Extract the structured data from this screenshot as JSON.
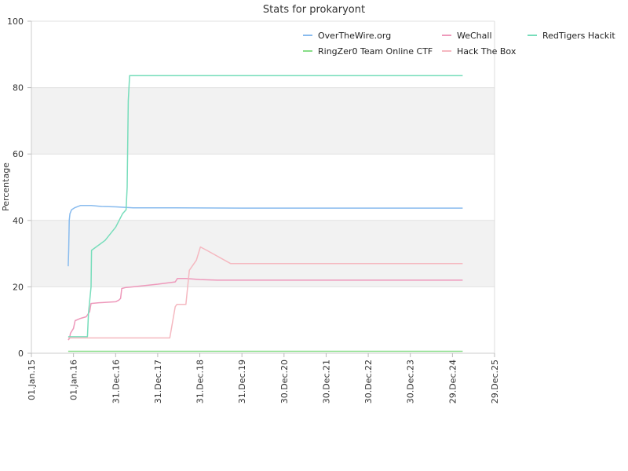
{
  "chart_data": {
    "type": "line",
    "title": "Stats for prokaryont",
    "xlabel": "",
    "ylabel": "Percentage",
    "ylim": [
      0,
      100
    ],
    "xlim": [
      "2015-01-01",
      "2025-12-29"
    ],
    "x_ticks": [
      "01.Jan.15",
      "01.Jan.16",
      "31.Dec.16",
      "31.Dec.17",
      "31.Dec.18",
      "31.Dec.19",
      "30.Dec.20",
      "30.Dec.21",
      "30.Dec.22",
      "30.Dec.23",
      "29.Dec.24",
      "29.Dec.25"
    ],
    "y_ticks": [
      0,
      20,
      40,
      60,
      80,
      100
    ],
    "legend_position": "top-right",
    "grid": "alternating horizontal bands",
    "series": [
      {
        "name": "OverTheWire.org",
        "color": "#88bbee",
        "points": [
          [
            "2015-11-16",
            26.2
          ],
          [
            "2015-11-20",
            31.0
          ],
          [
            "2015-11-25",
            40.0
          ],
          [
            "2015-12-01",
            42.0
          ],
          [
            "2015-12-15",
            43.2
          ],
          [
            "2016-01-10",
            43.8
          ],
          [
            "2016-03-01",
            44.5
          ],
          [
            "2016-06-01",
            44.5
          ],
          [
            "2016-09-01",
            44.2
          ],
          [
            "2017-01-01",
            44.1
          ],
          [
            "2017-06-01",
            43.8
          ],
          [
            "2018-06-01",
            43.8
          ],
          [
            "2020-01-01",
            43.7
          ],
          [
            "2025-03-28",
            43.7
          ]
        ]
      },
      {
        "name": "WeChall",
        "color": "#ee99bb",
        "points": [
          [
            "2015-11-16",
            4.0
          ],
          [
            "2015-11-28",
            4.5
          ],
          [
            "2015-12-05",
            6.0
          ],
          [
            "2016-01-01",
            7.5
          ],
          [
            "2016-01-15",
            9.8
          ],
          [
            "2016-03-01",
            10.5
          ],
          [
            "2016-04-20",
            11.0
          ],
          [
            "2016-05-20",
            12.5
          ],
          [
            "2016-06-01",
            15.0
          ],
          [
            "2016-08-01",
            15.2
          ],
          [
            "2017-01-01",
            15.5
          ],
          [
            "2017-01-28",
            16.0
          ],
          [
            "2017-02-12",
            16.5
          ],
          [
            "2017-02-22",
            19.5
          ],
          [
            "2017-04-01",
            19.8
          ],
          [
            "2017-06-01",
            20.0
          ],
          [
            "2018-01-01",
            20.8
          ],
          [
            "2018-06-01",
            21.5
          ],
          [
            "2018-06-20",
            22.5
          ],
          [
            "2018-09-01",
            22.5
          ],
          [
            "2019-01-01",
            22.2
          ],
          [
            "2019-06-01",
            22.0
          ],
          [
            "2025-03-28",
            22.0
          ]
        ]
      },
      {
        "name": "RedTigers Hackit",
        "color": "#77ddbb",
        "points": [
          [
            "2015-11-16",
            5.0
          ],
          [
            "2016-05-01",
            5.0
          ],
          [
            "2016-05-10",
            12.0
          ],
          [
            "2016-06-01",
            20.0
          ],
          [
            "2016-06-05",
            31.0
          ],
          [
            "2016-10-01",
            34.0
          ],
          [
            "2017-01-01",
            38.0
          ],
          [
            "2017-03-01",
            42.0
          ],
          [
            "2017-04-01",
            43.2
          ],
          [
            "2017-04-10",
            50.0
          ],
          [
            "2017-04-20",
            76.0
          ],
          [
            "2017-05-01",
            83.6
          ],
          [
            "2025-03-28",
            83.6
          ]
        ]
      },
      {
        "name": "RingZer0 Team Online CTF",
        "color": "#88dd88",
        "points": [
          [
            "2015-11-16",
            0.6
          ],
          [
            "2025-03-28",
            0.6
          ]
        ]
      },
      {
        "name": "Hack The Box",
        "color": "#f5b8c0",
        "points": [
          [
            "2015-11-16",
            4.6
          ],
          [
            "2018-04-15",
            4.6
          ],
          [
            "2018-06-01",
            14.0
          ],
          [
            "2018-06-15",
            14.7
          ],
          [
            "2018-09-01",
            14.7
          ],
          [
            "2018-10-01",
            25.0
          ],
          [
            "2018-12-01",
            28.0
          ],
          [
            "2019-01-05",
            32.0
          ],
          [
            "2019-03-01",
            31.0
          ],
          [
            "2019-09-25",
            27.0
          ],
          [
            "2025-03-28",
            27.0
          ]
        ]
      }
    ]
  }
}
